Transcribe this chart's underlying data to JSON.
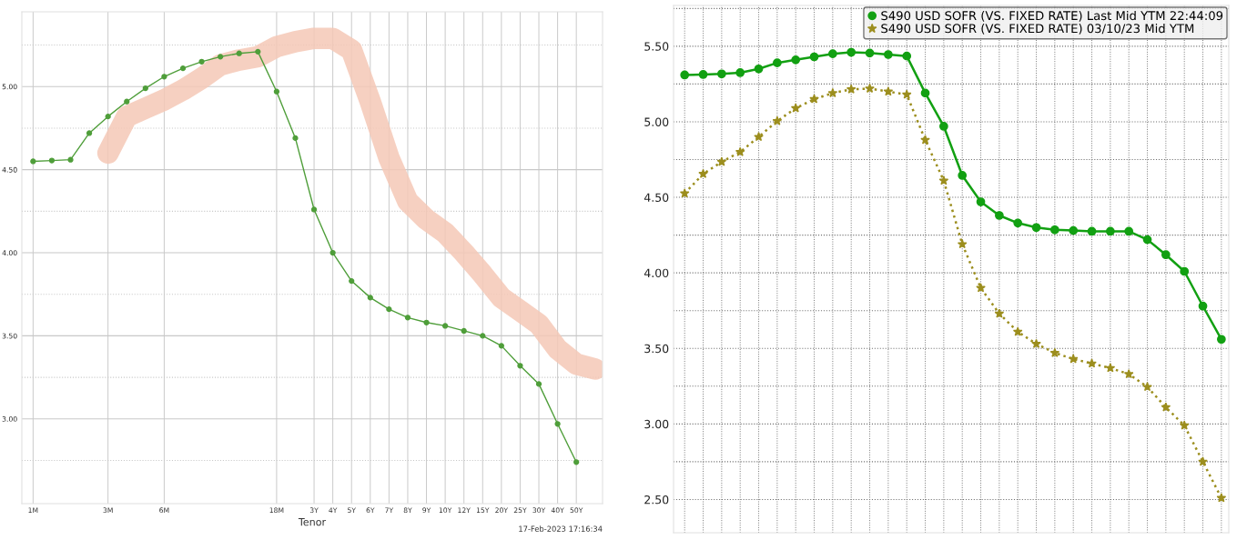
{
  "chart_data": [
    {
      "type": "line",
      "xlabel": "Tenor",
      "annotations": [
        "17-Feb-2023 17:16:34"
      ],
      "categories": [
        "1M",
        null,
        null,
        null,
        "3M",
        null,
        null,
        "6M",
        null,
        null,
        null,
        null,
        null,
        "18M",
        null,
        "3Y",
        "4Y",
        "5Y",
        "6Y",
        "7Y",
        "8Y",
        "9Y",
        "10Y",
        "12Y",
        "15Y",
        "20Y",
        "25Y",
        "30Y",
        "40Y",
        "50Y",
        null
      ],
      "ylim": [
        2.49,
        5.45
      ],
      "yticks": [
        {
          "value": 2.75,
          "label": null
        },
        {
          "value": 3.0,
          "label": "3.00"
        },
        {
          "value": 3.25,
          "label": null
        },
        {
          "value": 3.5,
          "label": "3.50"
        },
        {
          "value": 3.75,
          "label": null
        },
        {
          "value": 4.0,
          "label": "4.00"
        },
        {
          "value": 4.25,
          "label": null
        },
        {
          "value": 4.5,
          "label": "4.50"
        },
        {
          "value": 4.75,
          "label": null
        },
        {
          "value": 5.0,
          "label": "5.00"
        },
        {
          "value": 5.25,
          "label": null
        }
      ],
      "grid": true,
      "legend": false,
      "series": [
        {
          "color": "#f5c8b6",
          "marker": "none",
          "line_style": "solid",
          "values": [
            null,
            null,
            null,
            null,
            4.6,
            4.82,
            4.87,
            4.92,
            4.98,
            5.05,
            5.13,
            5.16,
            5.18,
            5.24,
            5.27,
            5.29,
            5.29,
            5.22,
            4.91,
            4.57,
            4.31,
            4.2,
            4.12,
            4.0,
            3.87,
            3.73,
            3.65,
            3.57,
            3.42,
            3.33,
            3.3
          ]
        },
        {
          "color": "#4f9e3a",
          "marker": "circle",
          "line_style": "solid",
          "values": [
            4.55,
            4.555,
            4.56,
            4.72,
            4.82,
            4.91,
            4.99,
            5.06,
            5.11,
            5.15,
            5.18,
            5.2,
            5.21,
            4.97,
            4.69,
            4.26,
            4.0,
            3.83,
            3.73,
            3.66,
            3.61,
            3.58,
            3.56,
            3.53,
            3.5,
            3.44,
            3.32,
            3.21,
            2.97,
            2.74,
            null
          ]
        }
      ]
    },
    {
      "type": "line",
      "tick_labels": "y",
      "legend": "top right",
      "grid": true,
      "categories": [
        null,
        null,
        null,
        null,
        null,
        null,
        null,
        null,
        null,
        null,
        null,
        null,
        null,
        null,
        null,
        null,
        null,
        null,
        null,
        null,
        null,
        null,
        null,
        null,
        null,
        null,
        null,
        null,
        null,
        null
      ],
      "ylim": [
        2.28,
        5.77
      ],
      "yticks": [
        {
          "value": 2.5,
          "label": "2.50"
        },
        {
          "value": 2.75,
          "label": null
        },
        {
          "value": 3.0,
          "label": "3.00"
        },
        {
          "value": 3.25,
          "label": null
        },
        {
          "value": 3.5,
          "label": "3.50"
        },
        {
          "value": 3.75,
          "label": null
        },
        {
          "value": 4.0,
          "label": "4.00"
        },
        {
          "value": 4.25,
          "label": null
        },
        {
          "value": 4.5,
          "label": "4.50"
        },
        {
          "value": 4.75,
          "label": null
        },
        {
          "value": 5.0,
          "label": "5.00"
        },
        {
          "value": 5.25,
          "label": null
        },
        {
          "value": 5.5,
          "label": "5.50"
        },
        {
          "value": 5.75,
          "label": null
        }
      ],
      "series": [
        {
          "name": "S490 USD SOFR (VS. FIXED RATE) Last Mid YTM 22:44:09",
          "color": "#12a012",
          "marker": "circle",
          "line_style": "solid",
          "values": [
            5.31,
            5.313,
            5.317,
            5.325,
            5.35,
            5.39,
            5.41,
            5.43,
            5.45,
            5.46,
            5.455,
            5.445,
            5.435,
            5.19,
            4.97,
            4.645,
            4.47,
            4.38,
            4.33,
            4.3,
            4.285,
            4.28,
            4.275,
            4.275,
            4.275,
            4.22,
            4.12,
            4.01,
            3.78,
            3.56
          ]
        },
        {
          "name": "S490 USD SOFR (VS. FIXED RATE) 03/10/23 Mid YTM",
          "color": "#9c8e1e",
          "marker": "star",
          "line_style": "dotted",
          "values": [
            4.526,
            4.655,
            4.735,
            4.8,
            4.9,
            5.005,
            5.09,
            5.15,
            5.19,
            5.215,
            5.22,
            5.2,
            5.18,
            4.88,
            4.61,
            4.19,
            3.9,
            3.73,
            3.61,
            3.53,
            3.47,
            3.43,
            3.4,
            3.37,
            3.33,
            3.245,
            3.11,
            2.99,
            2.75,
            2.51
          ]
        }
      ]
    }
  ]
}
